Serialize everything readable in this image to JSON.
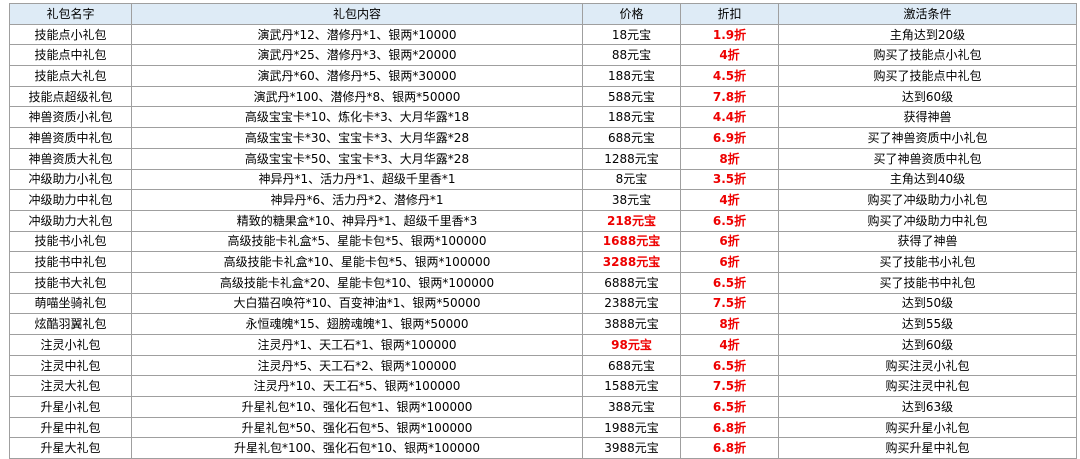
{
  "colors": {
    "header_bg": "#deebf6",
    "grid_line": "#9f9f9f",
    "discount_red": "#ee0000",
    "text": "#000000"
  },
  "table": {
    "columns": [
      "礼包名字",
      "礼包内容",
      "价格",
      "折扣",
      "激活条件"
    ],
    "rows": [
      {
        "name": "技能点小礼包",
        "content": "演武丹*12、潜修丹*1、银两*10000",
        "price": "18元宝",
        "price_highlight": false,
        "discount": "1.9折",
        "condition": "主角达到20级"
      },
      {
        "name": "技能点中礼包",
        "content": "演武丹*25、潜修丹*3、银两*20000",
        "price": "88元宝",
        "price_highlight": false,
        "discount": "4折",
        "condition": "购买了技能点小礼包"
      },
      {
        "name": "技能点大礼包",
        "content": "演武丹*60、潜修丹*5、银两*30000",
        "price": "188元宝",
        "price_highlight": false,
        "discount": "4.5折",
        "condition": "购买了技能点中礼包"
      },
      {
        "name": "技能点超级礼包",
        "content": "演武丹*100、潜修丹*8、银两*50000",
        "price": "588元宝",
        "price_highlight": false,
        "discount": "7.8折",
        "condition": "达到60级"
      },
      {
        "name": "神兽资质小礼包",
        "content": "高级宝宝卡*10、炼化卡*3、大月华露*18",
        "price": "188元宝",
        "price_highlight": false,
        "discount": "4.4折",
        "condition": "获得神兽"
      },
      {
        "name": "神兽资质中礼包",
        "content": "高级宝宝卡*30、宝宝卡*3、大月华露*28",
        "price": "688元宝",
        "price_highlight": false,
        "discount": "6.9折",
        "condition": "买了神兽资质中小礼包"
      },
      {
        "name": "神兽资质大礼包",
        "content": "高级宝宝卡*50、宝宝卡*3、大月华露*28",
        "price": "1288元宝",
        "price_highlight": false,
        "discount": "8折",
        "condition": "买了神兽资质中礼包"
      },
      {
        "name": "冲级助力小礼包",
        "content": "神异丹*1、活力丹*1、超级千里香*1",
        "price": "8元宝",
        "price_highlight": false,
        "discount": "3.5折",
        "condition": "主角达到40级"
      },
      {
        "name": "冲级助力中礼包",
        "content": "神异丹*6、活力丹*2、潜修丹*1",
        "price": "38元宝",
        "price_highlight": false,
        "discount": "4折",
        "condition": "购买了冲级助力小礼包"
      },
      {
        "name": "冲级助力大礼包",
        "content": "精致的糖果盒*10、神异丹*1、超级千里香*3",
        "price": "218元宝",
        "price_highlight": true,
        "discount": "6.5折",
        "condition": "购买了冲级助力中礼包"
      },
      {
        "name": "技能书小礼包",
        "content": "高级技能卡礼盒*5、星能卡包*5、银两*100000",
        "price": "1688元宝",
        "price_highlight": true,
        "discount": "6折",
        "condition": "获得了神兽"
      },
      {
        "name": "技能书中礼包",
        "content": "高级技能卡礼盒*10、星能卡包*5、银两*100000",
        "price": "3288元宝",
        "price_highlight": true,
        "discount": "6折",
        "condition": "买了技能书小礼包"
      },
      {
        "name": "技能书大礼包",
        "content": "高级技能卡礼盒*20、星能卡包*10、银两*100000",
        "price": "6888元宝",
        "price_highlight": false,
        "discount": "6.5折",
        "condition": "买了技能书中礼包"
      },
      {
        "name": "萌喵坐骑礼包",
        "content": "大白猫召唤符*10、百变神油*1、银两*50000",
        "price": "2388元宝",
        "price_highlight": false,
        "discount": "7.5折",
        "condition": "达到50级"
      },
      {
        "name": "炫酷羽翼礼包",
        "content": "永恒魂魄*15、翅膀魂魄*1、银两*50000",
        "price": "3888元宝",
        "price_highlight": false,
        "discount": "8折",
        "condition": "达到55级"
      },
      {
        "name": "注灵小礼包",
        "content": "注灵丹*1、天工石*1、银两*100000",
        "price": "98元宝",
        "price_highlight": true,
        "discount": "4折",
        "condition": "达到60级"
      },
      {
        "name": "注灵中礼包",
        "content": "注灵丹*5、天工石*2、银两*100000",
        "price": "688元宝",
        "price_highlight": false,
        "discount": "6.5折",
        "condition": "购买注灵小礼包"
      },
      {
        "name": "注灵大礼包",
        "content": "注灵丹*10、天工石*5、银两*100000",
        "price": "1588元宝",
        "price_highlight": false,
        "discount": "7.5折",
        "condition": "购买注灵中礼包"
      },
      {
        "name": "升星小礼包",
        "content": "升星礼包*10、强化石包*1、银两*100000",
        "price": "388元宝",
        "price_highlight": false,
        "discount": "6.5折",
        "condition": "达到63级"
      },
      {
        "name": "升星中礼包",
        "content": "升星礼包*50、强化石包*5、银两*100000",
        "price": "1988元宝",
        "price_highlight": false,
        "discount": "6.8折",
        "condition": "购买升星小礼包"
      },
      {
        "name": "升星大礼包",
        "content": "升星礼包*100、强化石包*10、银两*100000",
        "price": "3988元宝",
        "price_highlight": false,
        "discount": "6.8折",
        "condition": "购买升星中礼包"
      }
    ]
  }
}
